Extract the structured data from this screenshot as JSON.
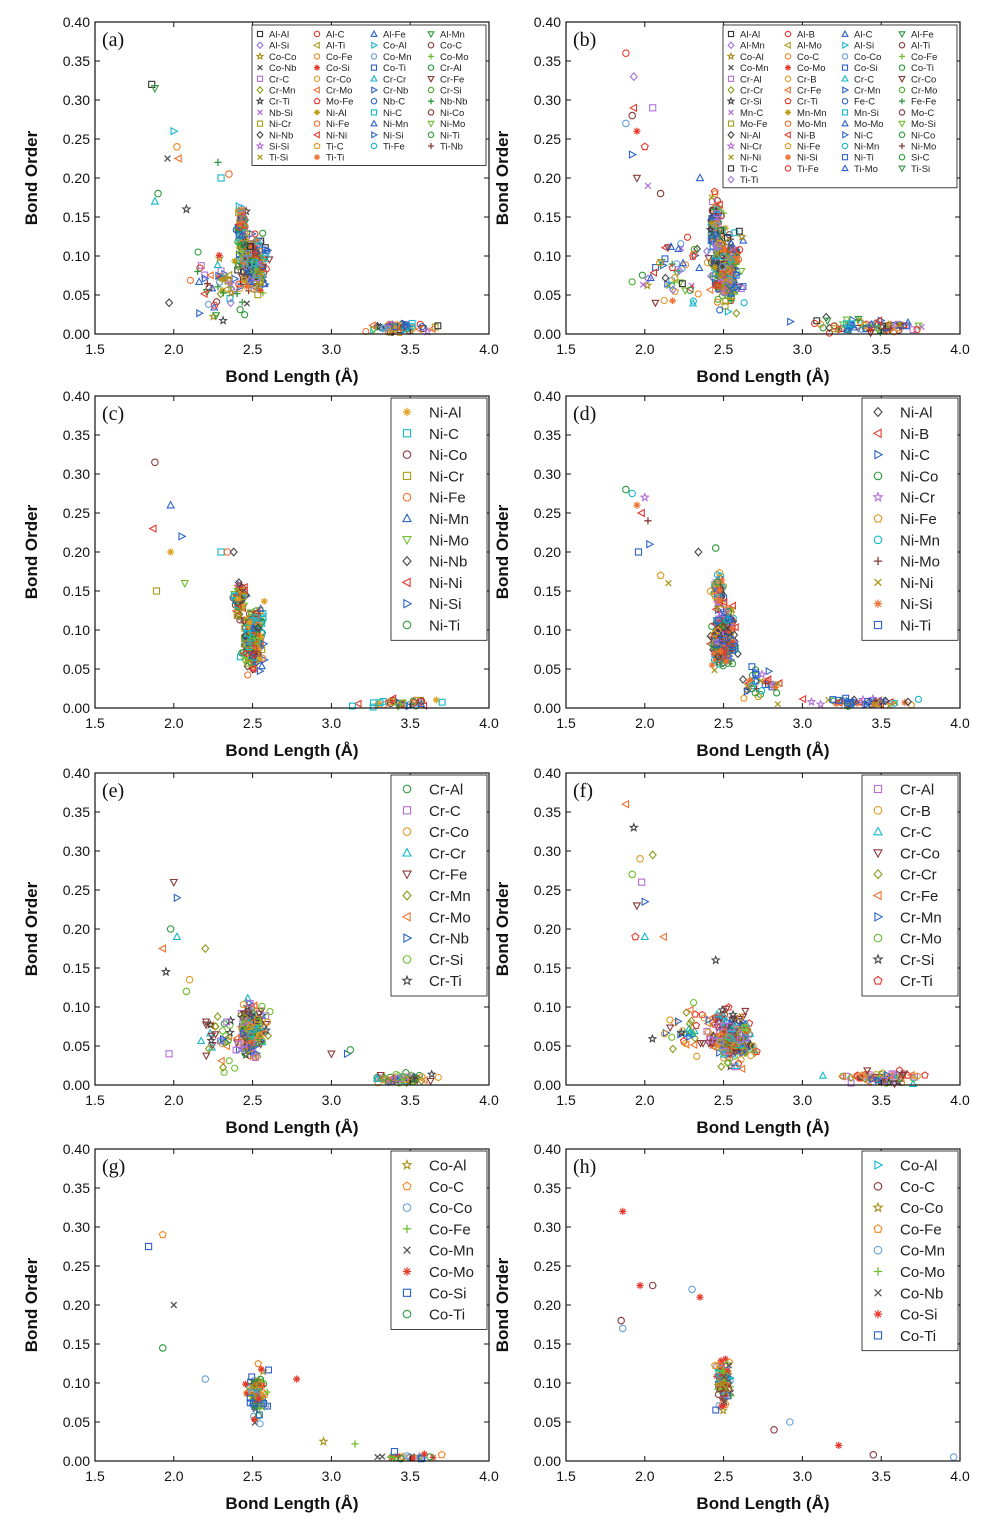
{
  "figure": {
    "x_title": "Bond Length (Å)",
    "y_title": "Bond Order",
    "x_ticks": [
      "1.5",
      "2.0",
      "2.5",
      "3.0",
      "3.5",
      "4.0"
    ],
    "y_ticks": [
      "0.00",
      "0.05",
      "0.10",
      "0.15",
      "0.20",
      "0.25",
      "0.30",
      "0.35",
      "0.40"
    ]
  },
  "chart_data": [
    {
      "panel": "(a)",
      "type": "scatter",
      "xlim": [
        1.5,
        4.0
      ],
      "ylim": [
        0,
        0.4
      ],
      "xlabel": "Bond Length (Å)",
      "ylabel": "Bond Order",
      "legend_columns": 4,
      "series": [
        {
          "name": "Al-Al",
          "color": "#333333",
          "marker": "square"
        },
        {
          "name": "Al-C",
          "color": "#e8372c",
          "marker": "circle"
        },
        {
          "name": "Al-Fe",
          "color": "#2a62c9",
          "marker": "triangle-up"
        },
        {
          "name": "Al-Mn",
          "color": "#2f9a3c",
          "marker": "triangle-down"
        },
        {
          "name": "Al-Si",
          "color": "#9e75d6",
          "marker": "diamond"
        },
        {
          "name": "Al-Ti",
          "color": "#a8a020",
          "marker": "triangle-left"
        },
        {
          "name": "Co-Al",
          "color": "#15b7c9",
          "marker": "triangle-right"
        },
        {
          "name": "Co-C",
          "color": "#8a3a3a",
          "marker": "circle"
        },
        {
          "name": "Co-Co",
          "color": "#a88f1a",
          "marker": "star"
        },
        {
          "name": "Co-Fe",
          "color": "#f08a24",
          "marker": "circle"
        },
        {
          "name": "Co-Mn",
          "color": "#6aa0d8",
          "marker": "circle"
        },
        {
          "name": "Co-Mo",
          "color": "#6fbf2f",
          "marker": "plus"
        },
        {
          "name": "Co-Nb",
          "color": "#555555",
          "marker": "cross"
        },
        {
          "name": "Co-Si",
          "color": "#e8372c",
          "marker": "asterisk"
        },
        {
          "name": "Co-Ti",
          "color": "#2a62c9",
          "marker": "square"
        },
        {
          "name": "Cr-Al",
          "color": "#2f9a3c",
          "marker": "circle"
        },
        {
          "name": "Cr-C",
          "color": "#b46ed8",
          "marker": "square"
        },
        {
          "name": "Cr-Co",
          "color": "#e09a28",
          "marker": "circle"
        },
        {
          "name": "Cr-Cr",
          "color": "#15b7c9",
          "marker": "triangle-up"
        },
        {
          "name": "Cr-Fe",
          "color": "#8a3a3a",
          "marker": "triangle-down"
        },
        {
          "name": "Cr-Mn",
          "color": "#8a9a1a",
          "marker": "diamond"
        },
        {
          "name": "Cr-Mo",
          "color": "#f07030",
          "marker": "triangle-left"
        },
        {
          "name": "Cr-Nb",
          "color": "#2a62c9",
          "marker": "triangle-right"
        },
        {
          "name": "Cr-Si",
          "color": "#4faa2f",
          "marker": "circle"
        },
        {
          "name": "Cr-Ti",
          "color": "#444444",
          "marker": "star"
        },
        {
          "name": "Mo-Fe",
          "color": "#e8372c",
          "marker": "pentagon"
        },
        {
          "name": "Nb-C",
          "color": "#2a62c9",
          "marker": "circle"
        },
        {
          "name": "Nb-Nb",
          "color": "#2f9a3c",
          "marker": "plus"
        },
        {
          "name": "Nb-Si",
          "color": "#b46ed8",
          "marker": "cross"
        },
        {
          "name": "Ni-Al",
          "color": "#c09a10",
          "marker": "asterisk"
        },
        {
          "name": "Ni-C",
          "color": "#15b7c9",
          "marker": "square"
        },
        {
          "name": "Ni-Co",
          "color": "#8a3a3a",
          "marker": "circle"
        },
        {
          "name": "Ni-Cr",
          "color": "#a89a18",
          "marker": "square"
        },
        {
          "name": "Ni-Fe",
          "color": "#f07030",
          "marker": "circle"
        },
        {
          "name": "Ni-Mn",
          "color": "#2a62c9",
          "marker": "triangle-up"
        },
        {
          "name": "Ni-Mo",
          "color": "#6fbf2f",
          "marker": "triangle-down"
        },
        {
          "name": "Ni-Nb",
          "color": "#444444",
          "marker": "diamond"
        },
        {
          "name": "Ni-Ni",
          "color": "#e8372c",
          "marker": "triangle-left"
        },
        {
          "name": "Ni-Si",
          "color": "#2a62c9",
          "marker": "triangle-right"
        },
        {
          "name": "Ni-Ti",
          "color": "#2f9a3c",
          "marker": "circle"
        },
        {
          "name": "Si-Si",
          "color": "#b46ed8",
          "marker": "star"
        },
        {
          "name": "Ti-C",
          "color": "#e09a28",
          "marker": "pentagon"
        },
        {
          "name": "Ti-Fe",
          "color": "#15b7c9",
          "marker": "circle"
        },
        {
          "name": "Ti-Nb",
          "color": "#8a3a3a",
          "marker": "plus"
        },
        {
          "name": "Ti-Si",
          "color": "#a89a18",
          "marker": "cross"
        },
        {
          "name": "Ti-Ti",
          "color": "#f07030",
          "marker": "asterisk"
        }
      ]
    },
    {
      "panel": "(b)",
      "type": "scatter",
      "xlim": [
        1.5,
        4.0
      ],
      "ylim": [
        0,
        0.4
      ],
      "xlabel": "Bond Length (Å)",
      "ylabel": "Bond Order",
      "legend_columns": 4,
      "series": [
        {
          "name": "Al-Al",
          "color": "#333333",
          "marker": "square"
        },
        {
          "name": "Al-B",
          "color": "#e8372c",
          "marker": "circle"
        },
        {
          "name": "Al-C",
          "color": "#2a62c9",
          "marker": "triangle-up"
        },
        {
          "name": "Al-Fe",
          "color": "#2f9a3c",
          "marker": "triangle-down"
        },
        {
          "name": "Al-Mn",
          "color": "#9e75d6",
          "marker": "diamond"
        },
        {
          "name": "Al-Mo",
          "color": "#a8a020",
          "marker": "triangle-left"
        },
        {
          "name": "Al-Si",
          "color": "#15b7c9",
          "marker": "triangle-right"
        },
        {
          "name": "Al-Ti",
          "color": "#8a3a3a",
          "marker": "circle"
        },
        {
          "name": "Co-Al",
          "color": "#a88f1a",
          "marker": "star"
        },
        {
          "name": "Co-C",
          "color": "#f08a24",
          "marker": "circle"
        },
        {
          "name": "Co-Co",
          "color": "#6aa0d8",
          "marker": "circle"
        },
        {
          "name": "Co-Fe",
          "color": "#6fbf2f",
          "marker": "plus"
        },
        {
          "name": "Co-Mn",
          "color": "#555555",
          "marker": "cross"
        },
        {
          "name": "Co-Mo",
          "color": "#e8372c",
          "marker": "asterisk"
        },
        {
          "name": "Co-Si",
          "color": "#2a62c9",
          "marker": "square"
        },
        {
          "name": "Co-Ti",
          "color": "#2f9a3c",
          "marker": "circle"
        },
        {
          "name": "Cr-Al",
          "color": "#b46ed8",
          "marker": "square"
        },
        {
          "name": "Cr-B",
          "color": "#e09a28",
          "marker": "circle"
        },
        {
          "name": "Cr-C",
          "color": "#15b7c9",
          "marker": "triangle-up"
        },
        {
          "name": "Cr-Co",
          "color": "#8a3a3a",
          "marker": "triangle-down"
        },
        {
          "name": "Cr-Cr",
          "color": "#8a9a1a",
          "marker": "diamond"
        },
        {
          "name": "Cr-Fe",
          "color": "#f07030",
          "marker": "triangle-left"
        },
        {
          "name": "Cr-Mn",
          "color": "#2a62c9",
          "marker": "triangle-right"
        },
        {
          "name": "Cr-Mo",
          "color": "#4faa2f",
          "marker": "circle"
        },
        {
          "name": "Cr-Si",
          "color": "#444444",
          "marker": "star"
        },
        {
          "name": "Cr-Ti",
          "color": "#e8372c",
          "marker": "pentagon"
        },
        {
          "name": "Fe-C",
          "color": "#2a62c9",
          "marker": "circle"
        },
        {
          "name": "Fe-Fe",
          "color": "#2f9a3c",
          "marker": "plus"
        },
        {
          "name": "Mn-C",
          "color": "#b46ed8",
          "marker": "cross"
        },
        {
          "name": "Mn-Mn",
          "color": "#c09a10",
          "marker": "asterisk"
        },
        {
          "name": "Mn-Si",
          "color": "#15b7c9",
          "marker": "square"
        },
        {
          "name": "Mo-C",
          "color": "#8a3a3a",
          "marker": "circle"
        },
        {
          "name": "Mo-Fe",
          "color": "#a89a18",
          "marker": "square"
        },
        {
          "name": "Mo-Mn",
          "color": "#f07030",
          "marker": "circle"
        },
        {
          "name": "Mo-Mo",
          "color": "#2a62c9",
          "marker": "triangle-up"
        },
        {
          "name": "Mo-Si",
          "color": "#6fbf2f",
          "marker": "triangle-down"
        },
        {
          "name": "Ni-Al",
          "color": "#444444",
          "marker": "diamond"
        },
        {
          "name": "Ni-B",
          "color": "#e8372c",
          "marker": "triangle-left"
        },
        {
          "name": "Ni-C",
          "color": "#2a62c9",
          "marker": "triangle-right"
        },
        {
          "name": "Ni-Co",
          "color": "#2f9a3c",
          "marker": "circle"
        },
        {
          "name": "Ni-Cr",
          "color": "#b46ed8",
          "marker": "star"
        },
        {
          "name": "Ni-Fe",
          "color": "#e09a28",
          "marker": "pentagon"
        },
        {
          "name": "Ni-Mn",
          "color": "#15b7c9",
          "marker": "circle"
        },
        {
          "name": "Ni-Mo",
          "color": "#8a3a3a",
          "marker": "plus"
        },
        {
          "name": "Ni-Ni",
          "color": "#a89a18",
          "marker": "cross"
        },
        {
          "name": "Ni-Si",
          "color": "#f07030",
          "marker": "asterisk"
        },
        {
          "name": "Ni-Ti",
          "color": "#2a62c9",
          "marker": "square"
        },
        {
          "name": "Si-C",
          "color": "#2f9a3c",
          "marker": "circle"
        },
        {
          "name": "Ti-C",
          "color": "#333333",
          "marker": "square"
        },
        {
          "name": "Ti-Fe",
          "color": "#e8372c",
          "marker": "circle"
        },
        {
          "name": "Ti-Mo",
          "color": "#2a62c9",
          "marker": "triangle-up"
        },
        {
          "name": "Ti-Si",
          "color": "#2f9a3c",
          "marker": "triangle-down"
        },
        {
          "name": "Ti-Ti",
          "color": "#9e75d6",
          "marker": "diamond"
        }
      ]
    },
    {
      "panel": "(c)",
      "type": "scatter",
      "xlim": [
        1.5,
        4.0
      ],
      "ylim": [
        0,
        0.4
      ],
      "xlabel": "Bond Length (Å)",
      "ylabel": "Bond Order",
      "legend_columns": 1,
      "series": [
        {
          "name": "Ni-Al",
          "color": "#e0a020",
          "marker": "asterisk"
        },
        {
          "name": "Ni-C",
          "color": "#15b7c9",
          "marker": "square"
        },
        {
          "name": "Ni-Co",
          "color": "#8a3a3a",
          "marker": "circle"
        },
        {
          "name": "Ni-Cr",
          "color": "#a89a18",
          "marker": "square"
        },
        {
          "name": "Ni-Fe",
          "color": "#f07030",
          "marker": "circle"
        },
        {
          "name": "Ni-Mn",
          "color": "#2a62c9",
          "marker": "triangle-up"
        },
        {
          "name": "Ni-Mo",
          "color": "#6fbf2f",
          "marker": "triangle-down"
        },
        {
          "name": "Ni-Nb",
          "color": "#444444",
          "marker": "diamond"
        },
        {
          "name": "Ni-Ni",
          "color": "#e8372c",
          "marker": "triangle-left"
        },
        {
          "name": "Ni-Si",
          "color": "#2a62c9",
          "marker": "triangle-right"
        },
        {
          "name": "Ni-Ti",
          "color": "#2f9a3c",
          "marker": "circle"
        }
      ]
    },
    {
      "panel": "(d)",
      "type": "scatter",
      "xlim": [
        1.5,
        4.0
      ],
      "ylim": [
        0,
        0.4
      ],
      "xlabel": "Bond Length (Å)",
      "ylabel": "Bond Order",
      "legend_columns": 1,
      "series": [
        {
          "name": "Ni-Al",
          "color": "#444444",
          "marker": "diamond"
        },
        {
          "name": "Ni-B",
          "color": "#e8372c",
          "marker": "triangle-left"
        },
        {
          "name": "Ni-C",
          "color": "#2a62c9",
          "marker": "triangle-right"
        },
        {
          "name": "Ni-Co",
          "color": "#2f9a3c",
          "marker": "circle"
        },
        {
          "name": "Ni-Cr",
          "color": "#b46ed8",
          "marker": "star"
        },
        {
          "name": "Ni-Fe",
          "color": "#e09a28",
          "marker": "pentagon"
        },
        {
          "name": "Ni-Mn",
          "color": "#15b7c9",
          "marker": "circle"
        },
        {
          "name": "Ni-Mo",
          "color": "#8a3a3a",
          "marker": "plus"
        },
        {
          "name": "Ni-Ni",
          "color": "#a89a18",
          "marker": "cross"
        },
        {
          "name": "Ni-Si",
          "color": "#f07030",
          "marker": "asterisk"
        },
        {
          "name": "Ni-Ti",
          "color": "#2a62c9",
          "marker": "square"
        }
      ]
    },
    {
      "panel": "(e)",
      "type": "scatter",
      "xlim": [
        1.5,
        4.0
      ],
      "ylim": [
        0,
        0.4
      ],
      "xlabel": "Bond Length (Å)",
      "ylabel": "Bond Order",
      "legend_columns": 1,
      "series": [
        {
          "name": "Cr-Al",
          "color": "#2f9a3c",
          "marker": "circle"
        },
        {
          "name": "Cr-C",
          "color": "#b46ed8",
          "marker": "square"
        },
        {
          "name": "Cr-Co",
          "color": "#e09a28",
          "marker": "circle"
        },
        {
          "name": "Cr-Cr",
          "color": "#15b7c9",
          "marker": "triangle-up"
        },
        {
          "name": "Cr-Fe",
          "color": "#8a3a3a",
          "marker": "triangle-down"
        },
        {
          "name": "Cr-Mn",
          "color": "#8a9a1a",
          "marker": "diamond"
        },
        {
          "name": "Cr-Mo",
          "color": "#f07030",
          "marker": "triangle-left"
        },
        {
          "name": "Cr-Nb",
          "color": "#2a62c9",
          "marker": "triangle-right"
        },
        {
          "name": "Cr-Si",
          "color": "#6fbf2f",
          "marker": "circle"
        },
        {
          "name": "Cr-Ti",
          "color": "#444444",
          "marker": "star"
        }
      ]
    },
    {
      "panel": "(f)",
      "type": "scatter",
      "xlim": [
        1.5,
        4.0
      ],
      "ylim": [
        0,
        0.4
      ],
      "xlabel": "Bond Length (Å)",
      "ylabel": "Bond Order",
      "legend_columns": 1,
      "series": [
        {
          "name": "Cr-Al",
          "color": "#b46ed8",
          "marker": "square"
        },
        {
          "name": "Cr-B",
          "color": "#e09a28",
          "marker": "circle"
        },
        {
          "name": "Cr-C",
          "color": "#15b7c9",
          "marker": "triangle-up"
        },
        {
          "name": "Cr-Co",
          "color": "#8a3a3a",
          "marker": "triangle-down"
        },
        {
          "name": "Cr-Cr",
          "color": "#8a9a1a",
          "marker": "diamond"
        },
        {
          "name": "Cr-Fe",
          "color": "#f07030",
          "marker": "triangle-left"
        },
        {
          "name": "Cr-Mn",
          "color": "#2a62c9",
          "marker": "triangle-right"
        },
        {
          "name": "Cr-Mo",
          "color": "#6fbf2f",
          "marker": "circle"
        },
        {
          "name": "Cr-Si",
          "color": "#444444",
          "marker": "star"
        },
        {
          "name": "Cr-Ti",
          "color": "#e8372c",
          "marker": "pentagon"
        }
      ]
    },
    {
      "panel": "(g)",
      "type": "scatter",
      "xlim": [
        1.5,
        4.0
      ],
      "ylim": [
        0,
        0.4
      ],
      "xlabel": "Bond Length (Å)",
      "ylabel": "Bond Order",
      "legend_columns": 1,
      "series": [
        {
          "name": "Co-Al",
          "color": "#a88f1a",
          "marker": "star"
        },
        {
          "name": "Co-C",
          "color": "#f08a24",
          "marker": "pentagon"
        },
        {
          "name": "Co-Co",
          "color": "#6aa0d8",
          "marker": "circle"
        },
        {
          "name": "Co-Fe",
          "color": "#6fbf2f",
          "marker": "plus"
        },
        {
          "name": "Co-Mn",
          "color": "#555555",
          "marker": "cross"
        },
        {
          "name": "Co-Mo",
          "color": "#e8372c",
          "marker": "asterisk"
        },
        {
          "name": "Co-Si",
          "color": "#2a62c9",
          "marker": "square"
        },
        {
          "name": "Co-Ti",
          "color": "#2f9a3c",
          "marker": "circle"
        }
      ]
    },
    {
      "panel": "(h)",
      "type": "scatter",
      "xlim": [
        1.5,
        4.0
      ],
      "ylim": [
        0,
        0.4
      ],
      "xlabel": "Bond Length (Å)",
      "ylabel": "Bond Order",
      "legend_columns": 1,
      "series": [
        {
          "name": "Co-Al",
          "color": "#15b7c9",
          "marker": "triangle-right"
        },
        {
          "name": "Co-C",
          "color": "#8a3a3a",
          "marker": "circle"
        },
        {
          "name": "Co-Co",
          "color": "#a88f1a",
          "marker": "star"
        },
        {
          "name": "Co-Fe",
          "color": "#f08a24",
          "marker": "pentagon"
        },
        {
          "name": "Co-Mn",
          "color": "#6aa0d8",
          "marker": "circle"
        },
        {
          "name": "Co-Mo",
          "color": "#6fbf2f",
          "marker": "plus"
        },
        {
          "name": "Co-Nb",
          "color": "#555555",
          "marker": "cross"
        },
        {
          "name": "Co-Si",
          "color": "#e8372c",
          "marker": "asterisk"
        },
        {
          "name": "Co-Ti",
          "color": "#2a62c9",
          "marker": "square"
        }
      ]
    }
  ]
}
